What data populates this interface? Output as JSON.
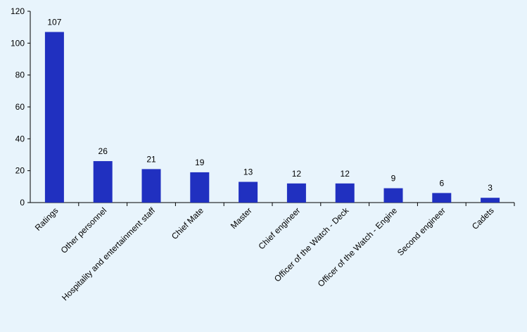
{
  "chart_data": {
    "type": "bar",
    "categories": [
      "Ratings",
      "Other personnel",
      "Hospitality and entertainment staff",
      "Chief Mate",
      "Master",
      "Chief engineer",
      "Officer of the Watch - Deck",
      "Officer of the Watch - Engine",
      "Second engineer",
      "Cadets"
    ],
    "values": [
      107,
      26,
      21,
      19,
      13,
      12,
      12,
      9,
      6,
      3
    ],
    "data_labels": [
      "107",
      "26",
      "21",
      "19",
      "13",
      "12",
      "12",
      "9",
      "6",
      "3"
    ],
    "ylim": [
      0,
      120
    ],
    "yticks": [
      0,
      20,
      40,
      60,
      80,
      100,
      120
    ],
    "ytick_labels": [
      "0",
      "20",
      "40",
      "60",
      "80",
      "100",
      "120"
    ],
    "grid": false,
    "legend": "none",
    "bar_color": "#2030c0",
    "background_color": "#e8f4fc",
    "axis_color": "#000000"
  }
}
